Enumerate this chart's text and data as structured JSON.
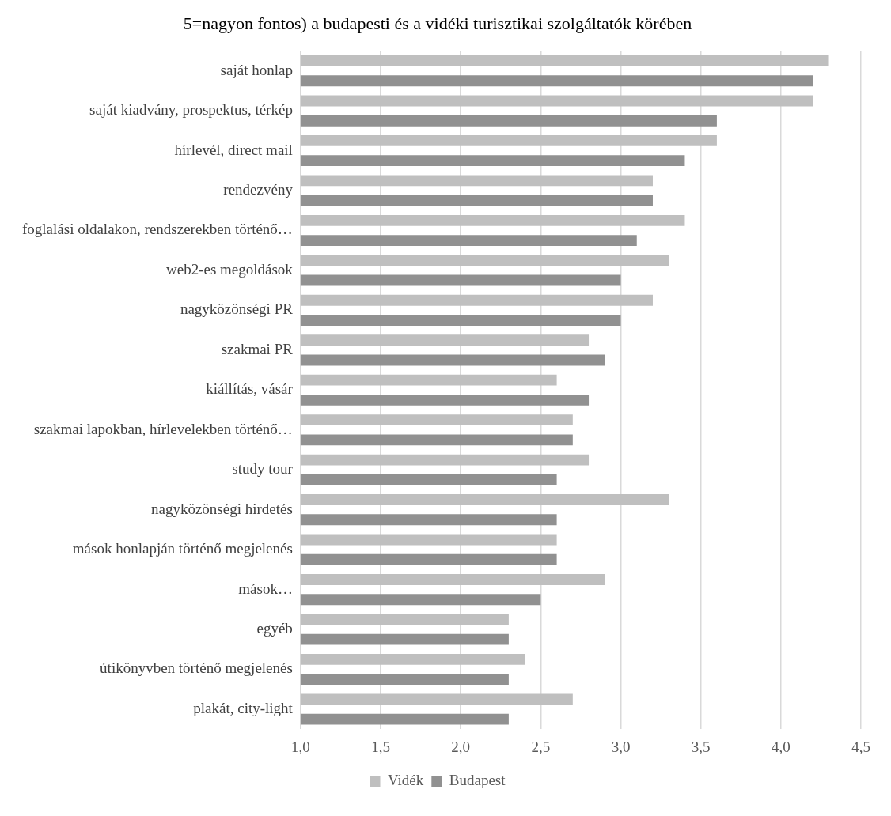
{
  "chart_data": {
    "type": "bar",
    "orientation": "horizontal",
    "title": "5=nagyon fontos) a budapesti és a vidéki turisztikai szolgáltatók körében",
    "categories": [
      "saját honlap",
      "saját kiadvány, prospektus, térkép",
      "hírlevél, direct mail",
      "rendezvény",
      "foglalási oldalakon, rendszerekben történő…",
      "web2-es megoldások",
      "nagyközönségi PR",
      "szakmai PR",
      "kiállítás, vásár",
      "szakmai lapokban, hírlevelekben történő…",
      "study tour",
      "nagyközönségi hirdetés",
      "mások honlapján történő megjelenés",
      "mások…",
      "egyéb",
      "útikönyvben történő megjelenés",
      "plakát, city-light"
    ],
    "series": [
      {
        "name": "Vidék",
        "color": "#bfbfbf",
        "values": [
          4.3,
          4.2,
          3.6,
          3.2,
          3.4,
          3.3,
          3.2,
          2.8,
          2.6,
          2.7,
          2.8,
          3.3,
          2.6,
          2.9,
          2.3,
          2.4,
          2.7
        ]
      },
      {
        "name": "Budapest",
        "color": "#919191",
        "values": [
          4.2,
          3.6,
          3.4,
          3.2,
          3.1,
          3.0,
          3.0,
          2.9,
          2.8,
          2.7,
          2.6,
          2.6,
          2.6,
          2.5,
          2.3,
          2.3,
          2.3
        ]
      }
    ],
    "xlim": [
      1.0,
      4.5
    ],
    "xticks": [
      {
        "value": 1.0,
        "label": "1,0"
      },
      {
        "value": 1.5,
        "label": "1,5"
      },
      {
        "value": 2.0,
        "label": "2,0"
      },
      {
        "value": 2.5,
        "label": "2,5"
      },
      {
        "value": 3.0,
        "label": "3,0"
      },
      {
        "value": 3.5,
        "label": "3,5"
      },
      {
        "value": 4.0,
        "label": "4,0"
      },
      {
        "value": 4.5,
        "label": "4,5"
      }
    ],
    "grid": "x",
    "legend": "bottom"
  }
}
